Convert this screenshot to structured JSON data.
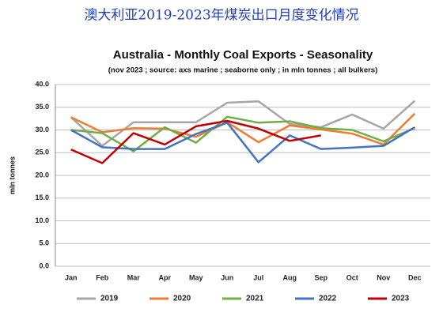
{
  "page_title": "澳大利亚2019-2023年煤炭出口月度变化情况",
  "chart_data": {
    "type": "line",
    "title": "Australia - Monthly Coal Exports - Seasonality",
    "subtitle": "(nov 2023 ; source: axs marine ; seaborne only ; in mln tonnes ; all bulkers)",
    "y_label": "mln tonnes",
    "categories": [
      "Jan",
      "Feb",
      "Mar",
      "Apr",
      "May",
      "Jun",
      "Jul",
      "Aug",
      "Sep",
      "Oct",
      "Nov",
      "Dec"
    ],
    "ylim": [
      0,
      40
    ],
    "yticks": [
      {
        "value": 0,
        "label": "0.0"
      },
      {
        "value": 5,
        "label": "5.0"
      },
      {
        "value": 10,
        "label": "10.0"
      },
      {
        "value": 15,
        "label": "15.0"
      },
      {
        "value": 20,
        "label": "20.0"
      },
      {
        "value": 25,
        "label": "25.0"
      },
      {
        "value": 30,
        "label": "30.0"
      },
      {
        "value": 35,
        "label": "35.0"
      },
      {
        "value": 40,
        "label": "40.0"
      }
    ],
    "grid": true,
    "legend": "bottom",
    "series": [
      {
        "name": "2019",
        "color": "#a6a6a6",
        "values": [
          32.8,
          26.5,
          31.7,
          31.7,
          31.7,
          36,
          36.3,
          31.3,
          30.6,
          33.4,
          30.3,
          36.4
        ]
      },
      {
        "name": "2020",
        "color": "#ed7d31",
        "values": [
          32.8,
          29.5,
          30.4,
          30.3,
          28.5,
          31.7,
          27.3,
          31,
          30.1,
          29.2,
          26.8,
          33.6
        ]
      },
      {
        "name": "2021",
        "color": "#70ad47",
        "values": [
          30,
          29.3,
          25.3,
          30.6,
          27.2,
          32.9,
          31.6,
          31.9,
          30.4,
          30,
          27.5,
          30.4
        ]
      },
      {
        "name": "2022",
        "color": "#4472c4",
        "values": [
          30,
          26.2,
          25.8,
          25.8,
          29.1,
          31.6,
          22.9,
          28.8,
          25.8,
          26.1,
          26.5,
          30.6
        ]
      },
      {
        "name": "2023",
        "color": "#c00000",
        "values": [
          25.7,
          22.7,
          29.3,
          26.8,
          30.8,
          32,
          30.3,
          27.6,
          28.8,
          null,
          null,
          null
        ]
      }
    ]
  }
}
